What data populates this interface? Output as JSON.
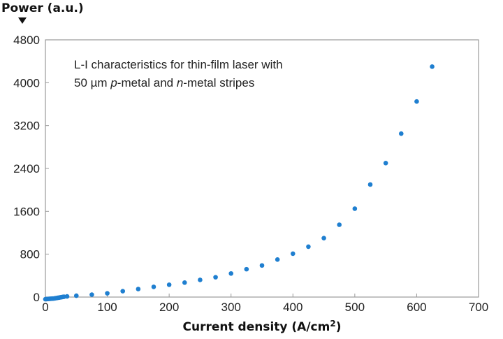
{
  "chart_data": {
    "type": "scatter",
    "ylabel": "Power (a.u.)",
    "xlabel": "Current density (A/cm",
    "xlabel_sup": "2",
    "xlabel_close": ")",
    "annotation": {
      "line1": "L-I characteristics for thin-film laser with",
      "line2_a": "50 µm ",
      "line2_b": "p",
      "line2_c": "-metal and ",
      "line2_d": "n",
      "line2_e": "-metal stripes"
    },
    "xlim": [
      0,
      700
    ],
    "ylim": [
      0,
      4800
    ],
    "x_ticks": [
      "0",
      "100",
      "200",
      "300",
      "400",
      "500",
      "600",
      "700"
    ],
    "y_ticks": [
      "0",
      "800",
      "1600",
      "2400",
      "3200",
      "4000",
      "4800"
    ],
    "grid": false,
    "marker_color": "#1f7fd0",
    "series": [
      {
        "x": [
          0,
          2,
          4,
          6,
          8,
          10,
          12,
          14,
          16,
          18,
          20,
          22,
          24,
          26,
          28,
          30,
          35,
          50,
          75,
          100,
          125,
          150,
          175,
          200,
          225,
          250,
          275,
          300,
          325,
          350,
          375,
          400,
          425,
          450,
          475,
          500,
          525,
          550,
          575,
          600,
          625
        ],
        "y": [
          -40,
          -38,
          -36,
          -34,
          -32,
          -30,
          -28,
          -26,
          -22,
          -18,
          -14,
          -10,
          -6,
          -2,
          2,
          6,
          12,
          25,
          45,
          70,
          110,
          150,
          190,
          230,
          270,
          320,
          370,
          440,
          520,
          590,
          700,
          810,
          940,
          1100,
          1350,
          1650,
          2100,
          2500,
          3050,
          3650,
          4300
        ]
      }
    ]
  }
}
